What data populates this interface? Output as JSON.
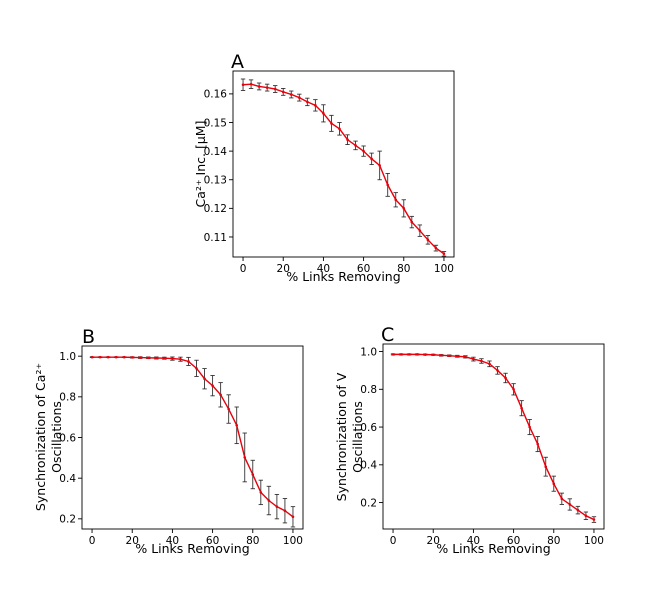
{
  "chart_data": [
    {
      "type": "line",
      "panel": "A",
      "xlabel": "% Links Removing",
      "ylabel": "Ca²⁺ Inc. [μM]",
      "xlim": [
        -5,
        105
      ],
      "ylim": [
        0.103,
        0.168
      ],
      "xticks": [
        0,
        20,
        40,
        60,
        80,
        100
      ],
      "yticks": [
        0.11,
        0.12,
        0.13,
        0.14,
        0.15,
        0.16
      ],
      "ytick_labels": [
        "0.11",
        "0.12",
        "0.13",
        "0.14",
        "0.15",
        "0.16"
      ],
      "line_color": "#e8000b",
      "x": [
        0,
        4,
        8,
        12,
        16,
        20,
        24,
        28,
        32,
        36,
        40,
        44,
        48,
        52,
        56,
        60,
        64,
        68,
        72,
        76,
        80,
        84,
        88,
        92,
        96,
        100
      ],
      "y": [
        0.1632,
        0.1634,
        0.1626,
        0.1622,
        0.1617,
        0.1607,
        0.1598,
        0.1587,
        0.1572,
        0.156,
        0.1532,
        0.1497,
        0.1478,
        0.144,
        0.142,
        0.14,
        0.1373,
        0.135,
        0.1282,
        0.123,
        0.12,
        0.1152,
        0.1122,
        0.109,
        0.1061,
        0.1041
      ],
      "err": [
        0.002,
        0.0015,
        0.0012,
        0.0012,
        0.0012,
        0.0012,
        0.0012,
        0.0012,
        0.0013,
        0.002,
        0.003,
        0.0028,
        0.0022,
        0.0017,
        0.0015,
        0.0018,
        0.002,
        0.005,
        0.004,
        0.0025,
        0.003,
        0.002,
        0.002,
        0.0015,
        0.001,
        0.0008
      ]
    },
    {
      "type": "line",
      "panel": "B",
      "xlabel": "% Links Removing",
      "ylabel": [
        "Synchronization of Ca²⁺",
        "Oscillations"
      ],
      "xlim": [
        -5,
        105
      ],
      "ylim": [
        0.15,
        1.05
      ],
      "xticks": [
        0,
        20,
        40,
        60,
        80,
        100
      ],
      "yticks": [
        0.2,
        0.4,
        0.6,
        0.8,
        1.0
      ],
      "ytick_labels": [
        "0.2",
        "0.4",
        "0.6",
        "0.8",
        "1.0"
      ],
      "line_color": "#e8000b",
      "x": [
        0,
        4,
        8,
        12,
        16,
        20,
        24,
        28,
        32,
        36,
        40,
        44,
        48,
        52,
        56,
        60,
        64,
        68,
        72,
        76,
        80,
        84,
        88,
        92,
        96,
        100
      ],
      "y": [
        0.995,
        0.995,
        0.995,
        0.995,
        0.995,
        0.994,
        0.993,
        0.992,
        0.991,
        0.99,
        0.988,
        0.985,
        0.974,
        0.94,
        0.889,
        0.855,
        0.81,
        0.74,
        0.66,
        0.502,
        0.418,
        0.33,
        0.29,
        0.26,
        0.24,
        0.21
      ],
      "err": [
        0.002,
        0.002,
        0.002,
        0.002,
        0.002,
        0.003,
        0.004,
        0.004,
        0.005,
        0.005,
        0.008,
        0.01,
        0.02,
        0.04,
        0.05,
        0.05,
        0.06,
        0.07,
        0.09,
        0.12,
        0.07,
        0.06,
        0.07,
        0.06,
        0.06,
        0.05
      ]
    },
    {
      "type": "line",
      "panel": "C",
      "xlabel": "% Links Removing",
      "ylabel": [
        "Synchronization of V",
        "Oscillations"
      ],
      "xlim": [
        -5,
        105
      ],
      "ylim": [
        0.06,
        1.04
      ],
      "xticks": [
        0,
        20,
        40,
        60,
        80,
        100
      ],
      "yticks": [
        0.2,
        0.4,
        0.6,
        0.8,
        1.0
      ],
      "ytick_labels": [
        "0.2",
        "0.4",
        "0.6",
        "0.8",
        "1.0"
      ],
      "line_color": "#e8000b",
      "x": [
        0,
        4,
        8,
        12,
        16,
        20,
        24,
        28,
        32,
        36,
        40,
        44,
        48,
        52,
        56,
        60,
        64,
        68,
        72,
        76,
        80,
        84,
        88,
        92,
        96,
        100
      ],
      "y": [
        0.985,
        0.985,
        0.985,
        0.985,
        0.984,
        0.983,
        0.98,
        0.978,
        0.975,
        0.972,
        0.96,
        0.95,
        0.935,
        0.9,
        0.86,
        0.8,
        0.7,
        0.6,
        0.51,
        0.39,
        0.3,
        0.22,
        0.19,
        0.16,
        0.13,
        0.11
      ],
      "err": [
        0.003,
        0.003,
        0.003,
        0.003,
        0.003,
        0.003,
        0.004,
        0.004,
        0.005,
        0.006,
        0.01,
        0.012,
        0.015,
        0.02,
        0.025,
        0.03,
        0.04,
        0.04,
        0.04,
        0.05,
        0.04,
        0.03,
        0.03,
        0.02,
        0.02,
        0.015
      ]
    }
  ]
}
